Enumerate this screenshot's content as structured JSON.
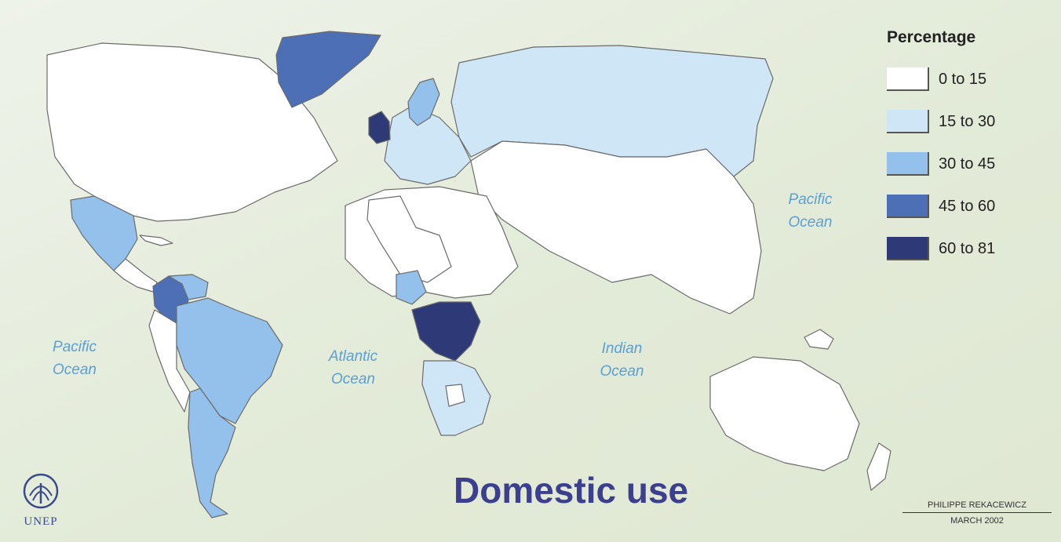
{
  "map": {
    "title": "Domestic use",
    "oceans": [
      {
        "id": "pacific-west",
        "line1": "Pacific",
        "line2": "Ocean"
      },
      {
        "id": "atlantic",
        "line1": "Atlantic",
        "line2": "Ocean"
      },
      {
        "id": "indian",
        "line1": "Indian",
        "line2": "Ocean"
      },
      {
        "id": "pacific-east",
        "line1": "Pacific",
        "line2": "Ocean"
      }
    ]
  },
  "legend": {
    "title": "Percentage",
    "classes": [
      {
        "label": "0 to 15",
        "color": "#ffffff"
      },
      {
        "label": "15 to 30",
        "color": "#cfe6f6"
      },
      {
        "label": "30 to 45",
        "color": "#94c1ec"
      },
      {
        "label": "45 to 60",
        "color": "#4c6fb6"
      },
      {
        "label": "60 to 81",
        "color": "#2e3a78"
      }
    ]
  },
  "regions": [
    {
      "name": "North America",
      "class": "0 to 15"
    },
    {
      "name": "Greenland",
      "class": "45 to 60"
    },
    {
      "name": "Mexico",
      "class": "30 to 45"
    },
    {
      "name": "Colombia",
      "class": "45 to 60"
    },
    {
      "name": "Venezuela",
      "class": "30 to 45"
    },
    {
      "name": "Brazil",
      "class": "30 to 45"
    },
    {
      "name": "Argentina",
      "class": "30 to 45"
    },
    {
      "name": "Europe",
      "class": "15 to 30"
    },
    {
      "name": "United Kingdom",
      "class": "60 to 81"
    },
    {
      "name": "Scandinavia",
      "class": "30 to 45"
    },
    {
      "name": "Russia",
      "class": "15 to 30"
    },
    {
      "name": "Central Africa",
      "class": "60 to 81"
    },
    {
      "name": "Nigeria",
      "class": "30 to 45"
    },
    {
      "name": "Southern Africa",
      "class": "15 to 30"
    },
    {
      "name": "Asia",
      "class": "0 to 15"
    },
    {
      "name": "Australia",
      "class": "0 to 15"
    }
  ],
  "branding": {
    "logo_text": "UNEP",
    "author": "PHILIPPE REKACEWICZ",
    "date": "MARCH 2002"
  },
  "colors": {
    "background": "#e6eedd",
    "title": "#3b3f8e",
    "ocean_label": "#5b9fd4",
    "coast": "#6b6b6b"
  }
}
